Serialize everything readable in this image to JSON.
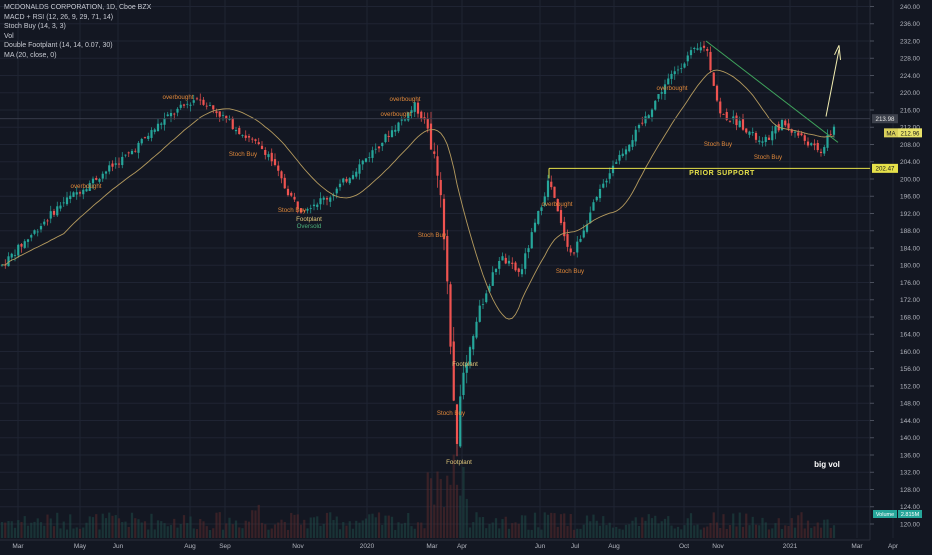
{
  "header": {
    "title": "MCDONALDS CORPORATION, 1D, Cboe BZX",
    "indicators": [
      "MACD + RSI (12, 26, 9, 29, 71, 14)",
      "Stoch Buy (14, 3, 3)",
      "Vol",
      "Double Footplant (14, 14, 0.07, 30)",
      "MA (20, close, 0)"
    ]
  },
  "colors": {
    "background": "#131722",
    "up": "#26a69a",
    "down": "#ef5350",
    "ma": "#b49a5e",
    "trendline": "#3fa35c",
    "support": "#e6e14a",
    "arrow": "#f0ecb0",
    "signal_text": "#e0883a",
    "axis_text": "#b2b5be"
  },
  "chart_data": {
    "type": "candlestick",
    "title": "MCDONALDS CORPORATION, 1D, Cboe BZX",
    "x_tick_labels": [
      "Mar",
      "May",
      "Jun",
      "Aug",
      "Sep",
      "Nov",
      "2020",
      "Mar",
      "Apr",
      "Jun",
      "Jul",
      "Aug",
      "Oct",
      "Nov",
      "2021",
      "Mar",
      "Apr"
    ],
    "y_tick_labels": [
      "240.00",
      "236.00",
      "232.00",
      "228.00",
      "224.00",
      "220.00",
      "216.00",
      "212.00",
      "208.00",
      "204.00",
      "200.00",
      "196.00",
      "192.00",
      "188.00",
      "184.00",
      "180.00",
      "176.00",
      "172.00",
      "168.00",
      "164.00",
      "160.00",
      "156.00",
      "152.00",
      "148.00",
      "144.00",
      "140.00",
      "136.00",
      "132.00",
      "128.00",
      "124.00",
      "120.00"
    ],
    "ylim": [
      119,
      241
    ],
    "grid": true,
    "price_path": [
      {
        "x": "Feb 2019",
        "y": 180
      },
      {
        "x": "Apr 2019",
        "y": 194
      },
      {
        "x": "May 2019",
        "y": 200
      },
      {
        "x": "Jun 2019",
        "y": 206
      },
      {
        "x": "Jul 2019",
        "y": 214
      },
      {
        "x": "Aug 2019",
        "y": 219
      },
      {
        "x": "Aug 2019",
        "y": 215
      },
      {
        "x": "Sep 2019",
        "y": 210
      },
      {
        "x": "Oct 2019",
        "y": 206
      },
      {
        "x": "Oct 2019",
        "y": 198
      },
      {
        "x": "Nov 2019",
        "y": 193
      },
      {
        "x": "Dec 2019",
        "y": 196
      },
      {
        "x": "Jan 2020",
        "y": 207
      },
      {
        "x": "Feb 2020",
        "y": 217
      },
      {
        "x": "Feb 2020",
        "y": 212
      },
      {
        "x": "Mar 2020",
        "y": 197
      },
      {
        "x": "Mar 2020",
        "y": 172
      },
      {
        "x": "Mar 2020",
        "y": 138
      },
      {
        "x": "Apr 2020",
        "y": 156
      },
      {
        "x": "Apr 2020",
        "y": 170
      },
      {
        "x": "May 2020",
        "y": 182
      },
      {
        "x": "May 2020",
        "y": 178
      },
      {
        "x": "Jun 2020",
        "y": 200
      },
      {
        "x": "Jun 2020",
        "y": 190
      },
      {
        "x": "Jul 2020",
        "y": 182
      },
      {
        "x": "Jul 2020",
        "y": 192
      },
      {
        "x": "Aug 2020",
        "y": 203
      },
      {
        "x": "Aug 2020",
        "y": 212
      },
      {
        "x": "Sep 2020",
        "y": 222
      },
      {
        "x": "Oct 2020",
        "y": 229
      },
      {
        "x": "Oct 2020",
        "y": 231
      },
      {
        "x": "Nov 2020",
        "y": 215
      },
      {
        "x": "Nov 2020",
        "y": 213
      },
      {
        "x": "Dec 2020",
        "y": 208
      },
      {
        "x": "Dec 2020",
        "y": 213
      },
      {
        "x": "Jan 2021",
        "y": 209
      },
      {
        "x": "Feb 2021",
        "y": 206
      },
      {
        "x": "Feb 2021",
        "y": 212.96
      }
    ],
    "price_labels": {
      "current": "212.96",
      "level_213": "213.98",
      "level_202": "202.47",
      "volume": "Volume",
      "volume_value": "2.815M",
      "ma_tag": "MA"
    },
    "annotations": {
      "prior_support": "PRIOR SUPPORT",
      "big_vol": "big vol",
      "signals": [
        {
          "text": "overbought",
          "x": "Aug 2019",
          "y": 220
        },
        {
          "text": "overbought",
          "x": "May 2019",
          "y": 202
        },
        {
          "text": "Stoch Buy",
          "x": "Sep 2019",
          "y": 206
        },
        {
          "text": "Stoch Buy",
          "x": "Oct 2019",
          "y": 193
        },
        {
          "text": "Footplant",
          "x": "Nov 2019",
          "y": 191
        },
        {
          "text": "Oversold",
          "x": "Nov 2019",
          "y": 188
        },
        {
          "text": "overbought",
          "x": "Jan 2020",
          "y": 219
        },
        {
          "text": "overbought",
          "x": "Jan 2020",
          "y": 214
        },
        {
          "text": "Stoch Buy",
          "x": "Feb 2020",
          "y": 187
        },
        {
          "text": "Footplant",
          "x": "Apr 2020",
          "y": 158
        },
        {
          "text": "Stoch Buy",
          "x": "Mar 2020",
          "y": 146
        },
        {
          "text": "Footplant",
          "x": "Mar 2020",
          "y": 135
        },
        {
          "text": "overbought",
          "x": "Jun 2020",
          "y": 194
        },
        {
          "text": "overbought",
          "x": "Sep 2020",
          "y": 215
        },
        {
          "text": "Stoch Buy",
          "x": "Jul 2020",
          "y": 178
        },
        {
          "text": "Stoch Buy",
          "x": "Nov 2020",
          "y": 206
        },
        {
          "text": "Stoch Buy",
          "x": "Dec 2020",
          "y": 203
        }
      ]
    },
    "lines": {
      "prior_support": {
        "y": 202.47,
        "x_from": "Jun 2020",
        "x_to": "Mar 2021"
      },
      "downtrend": {
        "from": {
          "x": "Oct 2020",
          "y": 232
        },
        "to": {
          "x": "Feb 2021",
          "y": 211
        }
      },
      "horizontal_level": {
        "y": 213.98
      }
    }
  }
}
